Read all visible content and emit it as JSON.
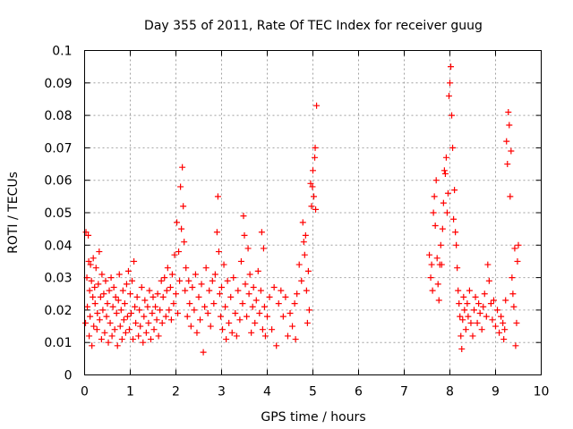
{
  "chart_data": {
    "type": "scatter",
    "title": "Day 355 of 2011, Rate Of TEC Index for receiver guug",
    "xlabel": "GPS time / hours",
    "ylabel": "ROTI / TECUs",
    "xlim": [
      0,
      10
    ],
    "ylim": [
      0,
      0.1
    ],
    "x_ticks": [
      "0",
      "1",
      "2",
      "3",
      "4",
      "5",
      "6",
      "7",
      "8",
      "9",
      "10"
    ],
    "y_ticks": [
      "0",
      "0.01",
      "0.02",
      "0.03",
      "0.04",
      "0.05",
      "0.06",
      "0.07",
      "0.08",
      "0.09",
      "0.1"
    ],
    "grid": true,
    "marker": "+",
    "color": "#ff0000",
    "points": [
      [
        0.02,
        0.016
      ],
      [
        0.03,
        0.044
      ],
      [
        0.05,
        0.03
      ],
      [
        0.06,
        0.021
      ],
      [
        0.08,
        0.043
      ],
      [
        0.09,
        0.035
      ],
      [
        0.1,
        0.012
      ],
      [
        0.11,
        0.026
      ],
      [
        0.12,
        0.018
      ],
      [
        0.13,
        0.034
      ],
      [
        0.15,
        0.029
      ],
      [
        0.16,
        0.009
      ],
      [
        0.18,
        0.024
      ],
      [
        0.19,
        0.036
      ],
      [
        0.2,
        0.015
      ],
      [
        0.22,
        0.027
      ],
      [
        0.23,
        0.022
      ],
      [
        0.25,
        0.033
      ],
      [
        0.27,
        0.014
      ],
      [
        0.28,
        0.019
      ],
      [
        0.3,
        0.028
      ],
      [
        0.32,
        0.038
      ],
      [
        0.33,
        0.017
      ],
      [
        0.35,
        0.024
      ],
      [
        0.37,
        0.011
      ],
      [
        0.38,
        0.031
      ],
      [
        0.4,
        0.02
      ],
      [
        0.42,
        0.025
      ],
      [
        0.44,
        0.013
      ],
      [
        0.46,
        0.029
      ],
      [
        0.48,
        0.018
      ],
      [
        0.5,
        0.022
      ],
      [
        0.52,
        0.01
      ],
      [
        0.54,
        0.026
      ],
      [
        0.56,
        0.016
      ],
      [
        0.58,
        0.03
      ],
      [
        0.6,
        0.012
      ],
      [
        0.62,
        0.021
      ],
      [
        0.64,
        0.027
      ],
      [
        0.66,
        0.014
      ],
      [
        0.68,
        0.024
      ],
      [
        0.7,
        0.019
      ],
      [
        0.72,
        0.009
      ],
      [
        0.74,
        0.023
      ],
      [
        0.76,
        0.031
      ],
      [
        0.78,
        0.015
      ],
      [
        0.8,
        0.02
      ],
      [
        0.82,
        0.011
      ],
      [
        0.84,
        0.026
      ],
      [
        0.86,
        0.017
      ],
      [
        0.88,
        0.022
      ],
      [
        0.9,
        0.013
      ],
      [
        0.92,
        0.028
      ],
      [
        0.94,
        0.018
      ],
      [
        0.96,
        0.032
      ],
      [
        0.98,
        0.014
      ],
      [
        1.0,
        0.025
      ],
      [
        1.02,
        0.019
      ],
      [
        1.04,
        0.029
      ],
      [
        1.06,
        0.011
      ],
      [
        1.08,
        0.035
      ],
      [
        1.1,
        0.021
      ],
      [
        1.12,
        0.016
      ],
      [
        1.15,
        0.024
      ],
      [
        1.18,
        0.012
      ],
      [
        1.2,
        0.02
      ],
      [
        1.22,
        0.015
      ],
      [
        1.25,
        0.027
      ],
      [
        1.28,
        0.01
      ],
      [
        1.3,
        0.018
      ],
      [
        1.32,
        0.023
      ],
      [
        1.35,
        0.013
      ],
      [
        1.38,
        0.021
      ],
      [
        1.4,
        0.016
      ],
      [
        1.42,
        0.026
      ],
      [
        1.45,
        0.011
      ],
      [
        1.48,
        0.019
      ],
      [
        1.5,
        0.024
      ],
      [
        1.52,
        0.014
      ],
      [
        1.55,
        0.021
      ],
      [
        1.58,
        0.017
      ],
      [
        1.6,
        0.025
      ],
      [
        1.62,
        0.012
      ],
      [
        1.65,
        0.02
      ],
      [
        1.68,
        0.029
      ],
      [
        1.7,
        0.016
      ],
      [
        1.72,
        0.024
      ],
      [
        1.75,
        0.03
      ],
      [
        1.78,
        0.018
      ],
      [
        1.8,
        0.026
      ],
      [
        1.82,
        0.033
      ],
      [
        1.85,
        0.02
      ],
      [
        1.88,
        0.027
      ],
      [
        1.9,
        0.017
      ],
      [
        1.92,
        0.031
      ],
      [
        1.95,
        0.022
      ],
      [
        1.97,
        0.037
      ],
      [
        2.0,
        0.025
      ],
      [
        2.02,
        0.047
      ],
      [
        2.04,
        0.019
      ],
      [
        2.06,
        0.038
      ],
      [
        2.08,
        0.029
      ],
      [
        2.1,
        0.058
      ],
      [
        2.12,
        0.045
      ],
      [
        2.14,
        0.064
      ],
      [
        2.16,
        0.052
      ],
      [
        2.18,
        0.041
      ],
      [
        2.2,
        0.026
      ],
      [
        2.22,
        0.033
      ],
      [
        2.25,
        0.018
      ],
      [
        2.28,
        0.029
      ],
      [
        2.3,
        0.022
      ],
      [
        2.33,
        0.015
      ],
      [
        2.36,
        0.027
      ],
      [
        2.4,
        0.02
      ],
      [
        2.43,
        0.031
      ],
      [
        2.46,
        0.013
      ],
      [
        2.5,
        0.024
      ],
      [
        2.53,
        0.017
      ],
      [
        2.56,
        0.028
      ],
      [
        2.6,
        0.007
      ],
      [
        2.63,
        0.021
      ],
      [
        2.66,
        0.033
      ],
      [
        2.7,
        0.019
      ],
      [
        2.73,
        0.026
      ],
      [
        2.76,
        0.015
      ],
      [
        2.8,
        0.029
      ],
      [
        2.83,
        0.022
      ],
      [
        2.86,
        0.031
      ],
      [
        2.9,
        0.044
      ],
      [
        2.92,
        0.055
      ],
      [
        2.94,
        0.038
      ],
      [
        2.96,
        0.025
      ],
      [
        2.98,
        0.018
      ],
      [
        3.0,
        0.027
      ],
      [
        3.02,
        0.014
      ],
      [
        3.05,
        0.034
      ],
      [
        3.08,
        0.021
      ],
      [
        3.1,
        0.011
      ],
      [
        3.13,
        0.029
      ],
      [
        3.16,
        0.016
      ],
      [
        3.2,
        0.024
      ],
      [
        3.23,
        0.013
      ],
      [
        3.26,
        0.03
      ],
      [
        3.3,
        0.019
      ],
      [
        3.33,
        0.012
      ],
      [
        3.36,
        0.026
      ],
      [
        3.4,
        0.017
      ],
      [
        3.43,
        0.035
      ],
      [
        3.46,
        0.022
      ],
      [
        3.48,
        0.049
      ],
      [
        3.5,
        0.043
      ],
      [
        3.52,
        0.028
      ],
      [
        3.55,
        0.018
      ],
      [
        3.58,
        0.039
      ],
      [
        3.6,
        0.025
      ],
      [
        3.62,
        0.031
      ],
      [
        3.65,
        0.013
      ],
      [
        3.68,
        0.021
      ],
      [
        3.7,
        0.027
      ],
      [
        3.73,
        0.016
      ],
      [
        3.76,
        0.023
      ],
      [
        3.8,
        0.032
      ],
      [
        3.83,
        0.019
      ],
      [
        3.86,
        0.026
      ],
      [
        3.88,
        0.044
      ],
      [
        3.9,
        0.014
      ],
      [
        3.92,
        0.039
      ],
      [
        3.94,
        0.021
      ],
      [
        3.96,
        0.012
      ],
      [
        4.0,
        0.018
      ],
      [
        4.05,
        0.024
      ],
      [
        4.1,
        0.014
      ],
      [
        4.15,
        0.027
      ],
      [
        4.2,
        0.009
      ],
      [
        4.25,
        0.022
      ],
      [
        4.3,
        0.026
      ],
      [
        4.35,
        0.018
      ],
      [
        4.4,
        0.024
      ],
      [
        4.45,
        0.012
      ],
      [
        4.5,
        0.019
      ],
      [
        4.55,
        0.015
      ],
      [
        4.6,
        0.022
      ],
      [
        4.62,
        0.011
      ],
      [
        4.65,
        0.025
      ],
      [
        4.7,
        0.034
      ],
      [
        4.75,
        0.029
      ],
      [
        4.78,
        0.047
      ],
      [
        4.8,
        0.041
      ],
      [
        4.82,
        0.037
      ],
      [
        4.84,
        0.043
      ],
      [
        4.86,
        0.026
      ],
      [
        4.88,
        0.016
      ],
      [
        4.9,
        0.032
      ],
      [
        4.92,
        0.02
      ],
      [
        4.95,
        0.059
      ],
      [
        4.97,
        0.052
      ],
      [
        4.99,
        0.058
      ],
      [
        5.0,
        0.063
      ],
      [
        5.02,
        0.055
      ],
      [
        5.04,
        0.067
      ],
      [
        5.05,
        0.07
      ],
      [
        5.06,
        0.051
      ],
      [
        5.08,
        0.083
      ],
      [
        7.55,
        0.037
      ],
      [
        7.58,
        0.03
      ],
      [
        7.6,
        0.034
      ],
      [
        7.62,
        0.026
      ],
      [
        7.64,
        0.05
      ],
      [
        7.66,
        0.055
      ],
      [
        7.68,
        0.046
      ],
      [
        7.7,
        0.06
      ],
      [
        7.72,
        0.036
      ],
      [
        7.74,
        0.028
      ],
      [
        7.76,
        0.023
      ],
      [
        7.78,
        0.034
      ],
      [
        7.8,
        0.04
      ],
      [
        7.82,
        0.034
      ],
      [
        7.84,
        0.045
      ],
      [
        7.86,
        0.053
      ],
      [
        7.88,
        0.063
      ],
      [
        7.9,
        0.062
      ],
      [
        7.92,
        0.067
      ],
      [
        7.94,
        0.05
      ],
      [
        7.96,
        0.056
      ],
      [
        7.98,
        0.086
      ],
      [
        8.0,
        0.09
      ],
      [
        8.02,
        0.095
      ],
      [
        8.04,
        0.08
      ],
      [
        8.06,
        0.07
      ],
      [
        8.08,
        0.048
      ],
      [
        8.1,
        0.057
      ],
      [
        8.12,
        0.044
      ],
      [
        8.14,
        0.04
      ],
      [
        8.16,
        0.033
      ],
      [
        8.18,
        0.026
      ],
      [
        8.2,
        0.022
      ],
      [
        8.22,
        0.018
      ],
      [
        8.24,
        0.012
      ],
      [
        8.26,
        0.008
      ],
      [
        8.28,
        0.017
      ],
      [
        8.3,
        0.024
      ],
      [
        8.32,
        0.02
      ],
      [
        8.35,
        0.014
      ],
      [
        8.38,
        0.022
      ],
      [
        8.4,
        0.018
      ],
      [
        8.43,
        0.026
      ],
      [
        8.46,
        0.016
      ],
      [
        8.5,
        0.012
      ],
      [
        8.53,
        0.02
      ],
      [
        8.56,
        0.024
      ],
      [
        8.6,
        0.016
      ],
      [
        8.63,
        0.022
      ],
      [
        8.66,
        0.019
      ],
      [
        8.7,
        0.014
      ],
      [
        8.73,
        0.021
      ],
      [
        8.76,
        0.025
      ],
      [
        8.8,
        0.018
      ],
      [
        8.83,
        0.034
      ],
      [
        8.86,
        0.029
      ],
      [
        8.9,
        0.022
      ],
      [
        8.93,
        0.017
      ],
      [
        8.96,
        0.023
      ],
      [
        9.0,
        0.015
      ],
      [
        9.04,
        0.02
      ],
      [
        9.08,
        0.013
      ],
      [
        9.12,
        0.018
      ],
      [
        9.16,
        0.016
      ],
      [
        9.18,
        0.011
      ],
      [
        9.2,
        0.014
      ],
      [
        9.22,
        0.023
      ],
      [
        9.24,
        0.072
      ],
      [
        9.26,
        0.065
      ],
      [
        9.28,
        0.081
      ],
      [
        9.3,
        0.077
      ],
      [
        9.32,
        0.055
      ],
      [
        9.34,
        0.069
      ],
      [
        9.36,
        0.03
      ],
      [
        9.38,
        0.025
      ],
      [
        9.4,
        0.021
      ],
      [
        9.42,
        0.039
      ],
      [
        9.44,
        0.009
      ],
      [
        9.46,
        0.016
      ],
      [
        9.48,
        0.035
      ],
      [
        9.5,
        0.04
      ]
    ]
  }
}
